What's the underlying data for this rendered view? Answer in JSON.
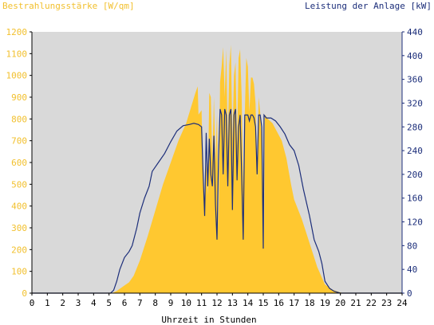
{
  "chart_data": {
    "type": "area",
    "title_left": "Bestrahlungsstärke [W/qm]",
    "title_right": "Leistung der Anlage [kW]",
    "xlabel": "Uhrzeit in Stunden",
    "x_ticks": [
      0,
      1,
      2,
      3,
      4,
      5,
      6,
      7,
      8,
      9,
      10,
      11,
      12,
      13,
      14,
      15,
      16,
      17,
      18,
      19,
      20,
      21,
      22,
      23,
      24
    ],
    "y_left_ticks": [
      0,
      100,
      200,
      300,
      400,
      500,
      600,
      700,
      800,
      900,
      1000,
      1100,
      1200
    ],
    "y_right_ticks": [
      0,
      40,
      80,
      120,
      160,
      200,
      240,
      280,
      320,
      360,
      400,
      440
    ],
    "xlim": [
      0,
      24
    ],
    "ylim_left": [
      0,
      1200
    ],
    "ylim_right": [
      0,
      440
    ],
    "grid": false,
    "series": [
      {
        "name": "Bestrahlungsstärke [W/qm]",
        "axis": "left",
        "style": "filled-area",
        "points": [
          [
            0,
            0
          ],
          [
            5.2,
            0
          ],
          [
            5.5,
            10
          ],
          [
            5.8,
            25
          ],
          [
            6.0,
            35
          ],
          [
            6.3,
            50
          ],
          [
            6.6,
            80
          ],
          [
            7.0,
            150
          ],
          [
            7.5,
            260
          ],
          [
            8.0,
            380
          ],
          [
            8.5,
            500
          ],
          [
            9.0,
            600
          ],
          [
            9.5,
            700
          ],
          [
            10.0,
            780
          ],
          [
            10.3,
            850
          ],
          [
            10.6,
            920
          ],
          [
            10.75,
            950
          ],
          [
            10.8,
            820
          ],
          [
            11.0,
            840
          ],
          [
            11.1,
            500
          ],
          [
            11.2,
            420
          ],
          [
            11.3,
            600
          ],
          [
            11.4,
            450
          ],
          [
            11.5,
            920
          ],
          [
            11.6,
            900
          ],
          [
            11.7,
            600
          ],
          [
            11.8,
            900
          ],
          [
            11.9,
            600
          ],
          [
            12.0,
            820
          ],
          [
            12.1,
            300
          ],
          [
            12.2,
            970
          ],
          [
            12.3,
            1040
          ],
          [
            12.4,
            1130
          ],
          [
            12.5,
            900
          ],
          [
            12.6,
            1120
          ],
          [
            12.7,
            680
          ],
          [
            12.8,
            1050
          ],
          [
            12.9,
            1140
          ],
          [
            13.0,
            700
          ],
          [
            13.1,
            1000
          ],
          [
            13.2,
            1060
          ],
          [
            13.3,
            680
          ],
          [
            13.4,
            1080
          ],
          [
            13.5,
            1120
          ],
          [
            13.6,
            900
          ],
          [
            13.7,
            480
          ],
          [
            13.8,
            820
          ],
          [
            13.9,
            1080
          ],
          [
            14.0,
            1040
          ],
          [
            14.1,
            830
          ],
          [
            14.2,
            990
          ],
          [
            14.3,
            990
          ],
          [
            14.4,
            960
          ],
          [
            14.5,
            870
          ],
          [
            14.6,
            520
          ],
          [
            14.7,
            900
          ],
          [
            14.8,
            830
          ],
          [
            14.9,
            700
          ],
          [
            15.0,
            500
          ],
          [
            15.05,
            220
          ],
          [
            15.1,
            820
          ],
          [
            15.3,
            800
          ],
          [
            15.6,
            780
          ],
          [
            15.9,
            740
          ],
          [
            16.2,
            700
          ],
          [
            16.5,
            620
          ],
          [
            16.8,
            500
          ],
          [
            17.0,
            430
          ],
          [
            17.5,
            340
          ],
          [
            18.0,
            230
          ],
          [
            18.5,
            120
          ],
          [
            19.0,
            40
          ],
          [
            19.5,
            15
          ],
          [
            20.0,
            3
          ],
          [
            20.2,
            0
          ],
          [
            24,
            0
          ]
        ]
      },
      {
        "name": "Leistung der Anlage [kW]",
        "axis": "right",
        "style": "line",
        "color": "#1c2e7a",
        "points": [
          [
            0,
            0
          ],
          [
            5.1,
            0
          ],
          [
            5.3,
            5
          ],
          [
            5.5,
            20
          ],
          [
            5.7,
            40
          ],
          [
            6.0,
            60
          ],
          [
            6.3,
            70
          ],
          [
            6.5,
            80
          ],
          [
            6.8,
            110
          ],
          [
            7.0,
            135
          ],
          [
            7.3,
            160
          ],
          [
            7.6,
            180
          ],
          [
            7.8,
            205
          ],
          [
            8.2,
            220
          ],
          [
            8.6,
            235
          ],
          [
            9.0,
            255
          ],
          [
            9.4,
            273
          ],
          [
            9.8,
            282
          ],
          [
            10.2,
            284
          ],
          [
            10.5,
            286
          ],
          [
            10.8,
            284
          ],
          [
            11.0,
            280
          ],
          [
            11.1,
            200
          ],
          [
            11.2,
            130
          ],
          [
            11.3,
            270
          ],
          [
            11.4,
            180
          ],
          [
            11.5,
            260
          ],
          [
            11.6,
            200
          ],
          [
            11.7,
            180
          ],
          [
            11.8,
            265
          ],
          [
            11.9,
            150
          ],
          [
            12.0,
            90
          ],
          [
            12.1,
            230
          ],
          [
            12.2,
            310
          ],
          [
            12.3,
            300
          ],
          [
            12.4,
            200
          ],
          [
            12.5,
            310
          ],
          [
            12.6,
            300
          ],
          [
            12.7,
            180
          ],
          [
            12.8,
            300
          ],
          [
            12.9,
            310
          ],
          [
            13.0,
            140
          ],
          [
            13.1,
            300
          ],
          [
            13.2,
            310
          ],
          [
            13.3,
            190
          ],
          [
            13.4,
            280
          ],
          [
            13.5,
            300
          ],
          [
            13.6,
            200
          ],
          [
            13.7,
            90
          ],
          [
            13.8,
            300
          ],
          [
            13.9,
            300
          ],
          [
            14.0,
            300
          ],
          [
            14.1,
            290
          ],
          [
            14.2,
            300
          ],
          [
            14.3,
            300
          ],
          [
            14.4,
            295
          ],
          [
            14.5,
            280
          ],
          [
            14.6,
            200
          ],
          [
            14.7,
            300
          ],
          [
            14.8,
            300
          ],
          [
            14.9,
            280
          ],
          [
            15.0,
            75
          ],
          [
            15.05,
            300
          ],
          [
            15.2,
            295
          ],
          [
            15.5,
            295
          ],
          [
            15.8,
            290
          ],
          [
            16.1,
            280
          ],
          [
            16.4,
            268
          ],
          [
            16.7,
            250
          ],
          [
            17.0,
            240
          ],
          [
            17.3,
            215
          ],
          [
            17.6,
            175
          ],
          [
            18.0,
            130
          ],
          [
            18.3,
            90
          ],
          [
            18.6,
            70
          ],
          [
            18.8,
            50
          ],
          [
            19.0,
            20
          ],
          [
            19.3,
            8
          ],
          [
            19.6,
            3
          ],
          [
            20.0,
            0
          ],
          [
            24,
            0
          ]
        ]
      }
    ]
  },
  "colors": {
    "plot_background": "#d9d9d9",
    "irradiance_fill": "#ffc830",
    "power_line": "#1c2e7a",
    "left_axis_text": "#f2c02e",
    "right_axis_text": "#1c2e7a",
    "bottom_text": "#000000"
  }
}
